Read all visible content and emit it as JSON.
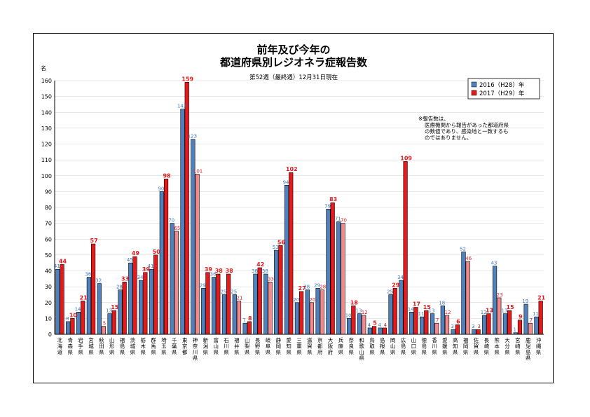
{
  "chart_data": {
    "type": "bar",
    "title_lines": [
      "前年及び今年の",
      "都道府県別レジオネラ症報告数"
    ],
    "subtitle": "第52週（最終週）12月31日現在",
    "ylabel": "名",
    "ylim": [
      0,
      160
    ],
    "yticks": [
      0,
      10,
      20,
      30,
      40,
      50,
      60,
      70,
      80,
      90,
      100,
      110,
      120,
      130,
      140,
      150,
      160
    ],
    "grid": true,
    "legend_position": "top-right",
    "note": [
      "※報告数は、",
      "医療機関から報告があった都道府県",
      "の数値であり、感染地と一致するも",
      "のではありません。"
    ],
    "categories": [
      "北海道",
      "青森県",
      "岩手県",
      "宮城県",
      "秋田県",
      "山形県",
      "福島県",
      "茨城県",
      "栃木県",
      "群馬県",
      "埼玉県",
      "千葉県",
      "東京都",
      "神奈川県",
      "新潟県",
      "富山県",
      "石川県",
      "福井県",
      "山梨県",
      "長野県",
      "岐阜県",
      "静岡県",
      "愛知県",
      "三重県",
      "滋賀県",
      "京都府",
      "大阪府",
      "兵庫県",
      "奈良県",
      "和歌山県",
      "鳥取県",
      "島根県",
      "岡山県",
      "広島県",
      "山口県",
      "徳島県",
      "香川県",
      "愛媛県",
      "高知県",
      "福岡県",
      "佐賀県",
      "長崎県",
      "熊本県",
      "大分県",
      "宮崎県",
      "鹿児島県",
      "沖縄県"
    ],
    "series": [
      {
        "name": "2016（H28）年",
        "color": "#4f81bd",
        "label_color": "#3a78c2",
        "values": [
          41,
          8,
          14,
          36,
          32,
          13,
          28,
          45,
          34,
          41,
          90,
          70,
          142,
          123,
          29,
          36,
          25,
          25,
          7,
          38,
          38,
          53,
          94,
          20,
          28,
          29,
          79,
          71,
          10,
          13,
          4,
          4,
          25,
          34,
          14,
          11,
          13,
          18,
          3,
          52,
          3,
          12,
          43,
          13,
          1,
          19,
          11
        ]
      },
      {
        "name": "2017（H29）年",
        "color": "#e41a1c",
        "label_color": "#e41a1c",
        "values": [
          44,
          10,
          21,
          57,
          5,
          15,
          33,
          49,
          39,
          50,
          98,
          65,
          159,
          101,
          39,
          38,
          38,
          21,
          8,
          42,
          33,
          56,
          102,
          27,
          20,
          28,
          83,
          70,
          18,
          12,
          5,
          4,
          29,
          109,
          17,
          15,
          7,
          12,
          6,
          46,
          3,
          13,
          23,
          15,
          9,
          7,
          21
        ]
      }
    ]
  }
}
